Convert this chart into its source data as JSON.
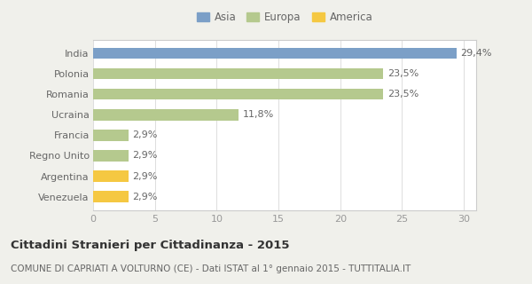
{
  "categories": [
    "India",
    "Polonia",
    "Romania",
    "Ucraina",
    "Francia",
    "Regno Unito",
    "Argentina",
    "Venezuela"
  ],
  "values": [
    29.4,
    23.5,
    23.5,
    11.8,
    2.9,
    2.9,
    2.9,
    2.9
  ],
  "labels": [
    "29,4%",
    "23,5%",
    "23,5%",
    "11,8%",
    "2,9%",
    "2,9%",
    "2,9%",
    "2,9%"
  ],
  "colors": [
    "#7b9fc7",
    "#b5c98e",
    "#b5c98e",
    "#b5c98e",
    "#b5c98e",
    "#b5c98e",
    "#f5c842",
    "#f5c842"
  ],
  "legend_labels": [
    "Asia",
    "Europa",
    "America"
  ],
  "legend_colors": [
    "#7b9fc7",
    "#b5c98e",
    "#f5c842"
  ],
  "title": "Cittadini Stranieri per Cittadinanza - 2015",
  "subtitle": "COMUNE DI CAPRIATI A VOLTURNO (CE) - Dati ISTAT al 1° gennaio 2015 - TUTTITALIA.IT",
  "xlim": [
    0,
    31
  ],
  "xticks": [
    0,
    5,
    10,
    15,
    20,
    25,
    30
  ],
  "fig_bg_color": "#f0f0eb",
  "plot_bg_color": "#ffffff",
  "bar_height": 0.55,
  "title_fontsize": 9.5,
  "subtitle_fontsize": 7.5,
  "label_fontsize": 8,
  "tick_fontsize": 8,
  "legend_fontsize": 8.5
}
